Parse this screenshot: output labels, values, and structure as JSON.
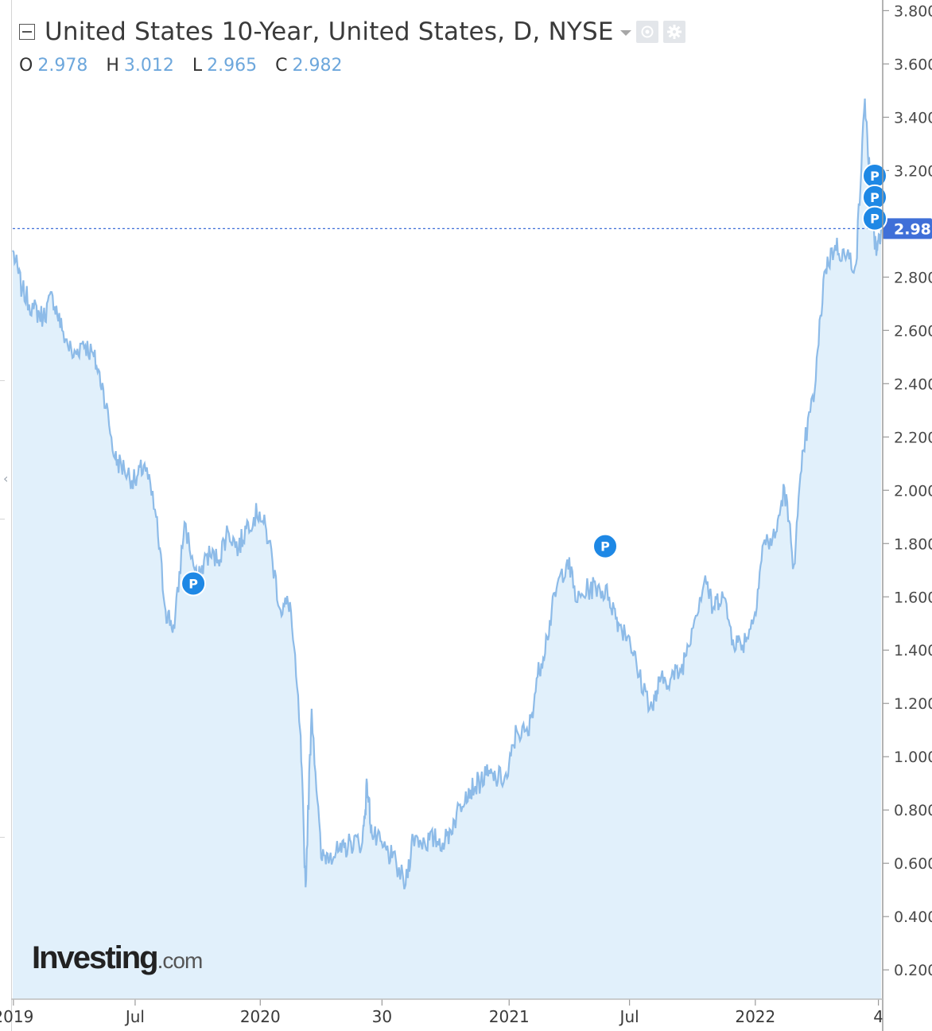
{
  "header": {
    "title": "United States 10-Year, United States, D, NYSE",
    "ohlc": [
      {
        "key": "O",
        "value": "2.978"
      },
      {
        "key": "H",
        "value": "3.012"
      },
      {
        "key": "L",
        "value": "2.965"
      },
      {
        "key": "C",
        "value": "2.982"
      }
    ],
    "icons": [
      "eye-icon",
      "gear-icon"
    ]
  },
  "colors": {
    "line": "#8dbbe8",
    "fill": "#e1f0fb",
    "accent": "#3f6fd8",
    "marker": "#1e88e5"
  },
  "logo": {
    "main": "Investing",
    "domain": ".com"
  },
  "chart_data": {
    "type": "area",
    "y_axis_ticks": [
      "3.800",
      "3.600",
      "3.400",
      "3.200",
      "2.800",
      "2.600",
      "2.400",
      "2.200",
      "2.000",
      "1.800",
      "1.600",
      "1.400",
      "1.200",
      "1.000",
      "0.800",
      "0.600",
      "0.400",
      "0.200"
    ],
    "x_axis_ticks": [
      {
        "label": "2019",
        "date": "2019-01-02"
      },
      {
        "label": "Jul",
        "date": "2019-07-01"
      },
      {
        "label": "2020",
        "date": "2020-01-02"
      },
      {
        "label": "30",
        "date": "2020-06-30"
      },
      {
        "label": "2021",
        "date": "2021-01-04"
      },
      {
        "label": "Jul",
        "date": "2021-07-01"
      },
      {
        "label": "2022",
        "date": "2022-01-03"
      },
      {
        "label": "4",
        "date": "2022-07-04"
      }
    ],
    "ylim": [
      0.09,
      3.84
    ],
    "xlim": [
      "2019-01-01",
      "2022-07-08"
    ],
    "last_price": "2.982",
    "series": [
      {
        "points": [
          [
            "2019-01-01",
            2.9
          ],
          [
            "2019-01-15",
            2.75
          ],
          [
            "2019-02-01",
            2.68
          ],
          [
            "2019-02-15",
            2.65
          ],
          [
            "2019-03-01",
            2.73
          ],
          [
            "2019-03-15",
            2.6
          ],
          [
            "2019-04-01",
            2.5
          ],
          [
            "2019-04-15",
            2.56
          ],
          [
            "2019-05-01",
            2.5
          ],
          [
            "2019-05-15",
            2.38
          ],
          [
            "2019-06-01",
            2.12
          ],
          [
            "2019-06-15",
            2.08
          ],
          [
            "2019-07-01",
            2.03
          ],
          [
            "2019-07-15",
            2.1
          ],
          [
            "2019-08-01",
            1.9
          ],
          [
            "2019-08-15",
            1.55
          ],
          [
            "2019-08-28",
            1.48
          ],
          [
            "2019-09-12",
            1.88
          ],
          [
            "2019-10-01",
            1.65
          ],
          [
            "2019-10-15",
            1.76
          ],
          [
            "2019-11-01",
            1.74
          ],
          [
            "2019-11-15",
            1.85
          ],
          [
            "2019-12-01",
            1.78
          ],
          [
            "2019-12-15",
            1.88
          ],
          [
            "2020-01-01",
            1.92
          ],
          [
            "2020-01-15",
            1.81
          ],
          [
            "2020-02-01",
            1.55
          ],
          [
            "2020-02-15",
            1.58
          ],
          [
            "2020-03-01",
            1.1
          ],
          [
            "2020-03-09",
            0.51
          ],
          [
            "2020-03-18",
            1.18
          ],
          [
            "2020-04-01",
            0.62
          ],
          [
            "2020-04-15",
            0.64
          ],
          [
            "2020-05-01",
            0.64
          ],
          [
            "2020-05-15",
            0.68
          ],
          [
            "2020-06-01",
            0.68
          ],
          [
            "2020-06-08",
            0.9
          ],
          [
            "2020-06-15",
            0.71
          ],
          [
            "2020-07-01",
            0.66
          ],
          [
            "2020-07-15",
            0.62
          ],
          [
            "2020-08-04",
            0.52
          ],
          [
            "2020-08-15",
            0.7
          ],
          [
            "2020-09-01",
            0.68
          ],
          [
            "2020-09-15",
            0.69
          ],
          [
            "2020-10-01",
            0.68
          ],
          [
            "2020-10-15",
            0.76
          ],
          [
            "2020-11-01",
            0.87
          ],
          [
            "2020-11-15",
            0.89
          ],
          [
            "2020-12-01",
            0.93
          ],
          [
            "2020-12-15",
            0.92
          ],
          [
            "2021-01-01",
            0.92
          ],
          [
            "2021-01-15",
            1.1
          ],
          [
            "2021-02-01",
            1.08
          ],
          [
            "2021-02-15",
            1.3
          ],
          [
            "2021-03-01",
            1.45
          ],
          [
            "2021-03-15",
            1.63
          ],
          [
            "2021-03-31",
            1.74
          ],
          [
            "2021-04-15",
            1.58
          ],
          [
            "2021-05-01",
            1.63
          ],
          [
            "2021-05-15",
            1.64
          ],
          [
            "2021-06-01",
            1.6
          ],
          [
            "2021-06-15",
            1.5
          ],
          [
            "2021-07-01",
            1.45
          ],
          [
            "2021-07-15",
            1.3
          ],
          [
            "2021-08-04",
            1.18
          ],
          [
            "2021-08-15",
            1.28
          ],
          [
            "2021-09-01",
            1.3
          ],
          [
            "2021-09-15",
            1.32
          ],
          [
            "2021-10-01",
            1.48
          ],
          [
            "2021-10-21",
            1.68
          ],
          [
            "2021-11-01",
            1.55
          ],
          [
            "2021-11-15",
            1.62
          ],
          [
            "2021-12-01",
            1.44
          ],
          [
            "2021-12-15",
            1.42
          ],
          [
            "2022-01-01",
            1.52
          ],
          [
            "2022-01-15",
            1.8
          ],
          [
            "2022-02-01",
            1.82
          ],
          [
            "2022-02-15",
            2.01
          ],
          [
            "2022-03-01",
            1.72
          ],
          [
            "2022-03-15",
            2.15
          ],
          [
            "2022-04-01",
            2.38
          ],
          [
            "2022-04-15",
            2.82
          ],
          [
            "2022-05-01",
            2.92
          ],
          [
            "2022-05-15",
            2.88
          ],
          [
            "2022-06-01",
            2.85
          ],
          [
            "2022-06-14",
            3.47
          ],
          [
            "2022-06-23",
            3.1
          ],
          [
            "2022-07-01",
            2.88
          ],
          [
            "2022-07-08",
            2.982
          ]
        ]
      }
    ],
    "markers": [
      {
        "date": "2019-09-25",
        "value": 1.65,
        "label": "P"
      },
      {
        "date": "2021-05-26",
        "value": 1.79,
        "label": "P"
      },
      {
        "date": "2022-07-06",
        "value": 3.18,
        "label": "P"
      },
      {
        "date": "2022-07-07",
        "value": 3.1,
        "label": "P"
      },
      {
        "date": "2022-07-06",
        "value": 3.02,
        "label": "P"
      }
    ],
    "logo_text": "Investing.com"
  }
}
